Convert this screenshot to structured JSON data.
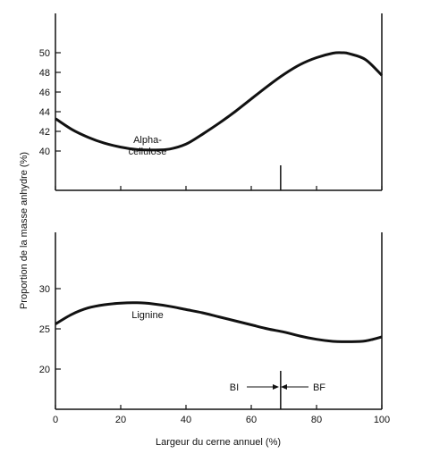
{
  "chart_data": [
    {
      "type": "line",
      "panel": "top",
      "xlim": [
        0,
        100
      ],
      "ylim": [
        36,
        54
      ],
      "yticks": [
        40,
        42,
        44,
        46,
        48,
        50
      ],
      "series": [
        {
          "name": "Alpha-cellulose",
          "x": [
            0,
            5,
            10,
            15,
            20,
            25,
            30,
            35,
            40,
            45,
            50,
            55,
            60,
            65,
            70,
            75,
            80,
            85,
            88,
            90,
            95,
            100
          ],
          "values": [
            43.3,
            42.2,
            41.4,
            40.8,
            40.4,
            40.15,
            40.1,
            40.2,
            40.7,
            41.7,
            42.8,
            44.0,
            45.3,
            46.6,
            47.8,
            48.8,
            49.5,
            49.95,
            50.0,
            49.9,
            49.3,
            47.7
          ]
        }
      ],
      "annotations": [
        "Alpha-",
        "cellulose"
      ],
      "divider_x": 69
    },
    {
      "type": "line",
      "panel": "bottom",
      "xlim": [
        0,
        100
      ],
      "ylim": [
        15,
        37
      ],
      "yticks": [
        20,
        25,
        30
      ],
      "xticks": [
        0,
        20,
        40,
        60,
        80,
        100
      ],
      "xlabel": "Largeur du cerne annuel (%)",
      "series": [
        {
          "name": "Lignine",
          "x": [
            0,
            5,
            10,
            15,
            20,
            25,
            30,
            35,
            40,
            45,
            50,
            55,
            60,
            65,
            70,
            75,
            80,
            85,
            90,
            95,
            100
          ],
          "values": [
            25.6,
            26.8,
            27.6,
            28.0,
            28.2,
            28.25,
            28.1,
            27.8,
            27.4,
            27.0,
            26.5,
            26.0,
            25.5,
            25.0,
            24.6,
            24.1,
            23.7,
            23.45,
            23.4,
            23.5,
            24.0
          ]
        }
      ],
      "annotations": [
        "Lignine",
        "BI",
        "BF"
      ],
      "divider_x": 69
    }
  ],
  "ylabel": "Proportion de la masse anhydre (%)"
}
